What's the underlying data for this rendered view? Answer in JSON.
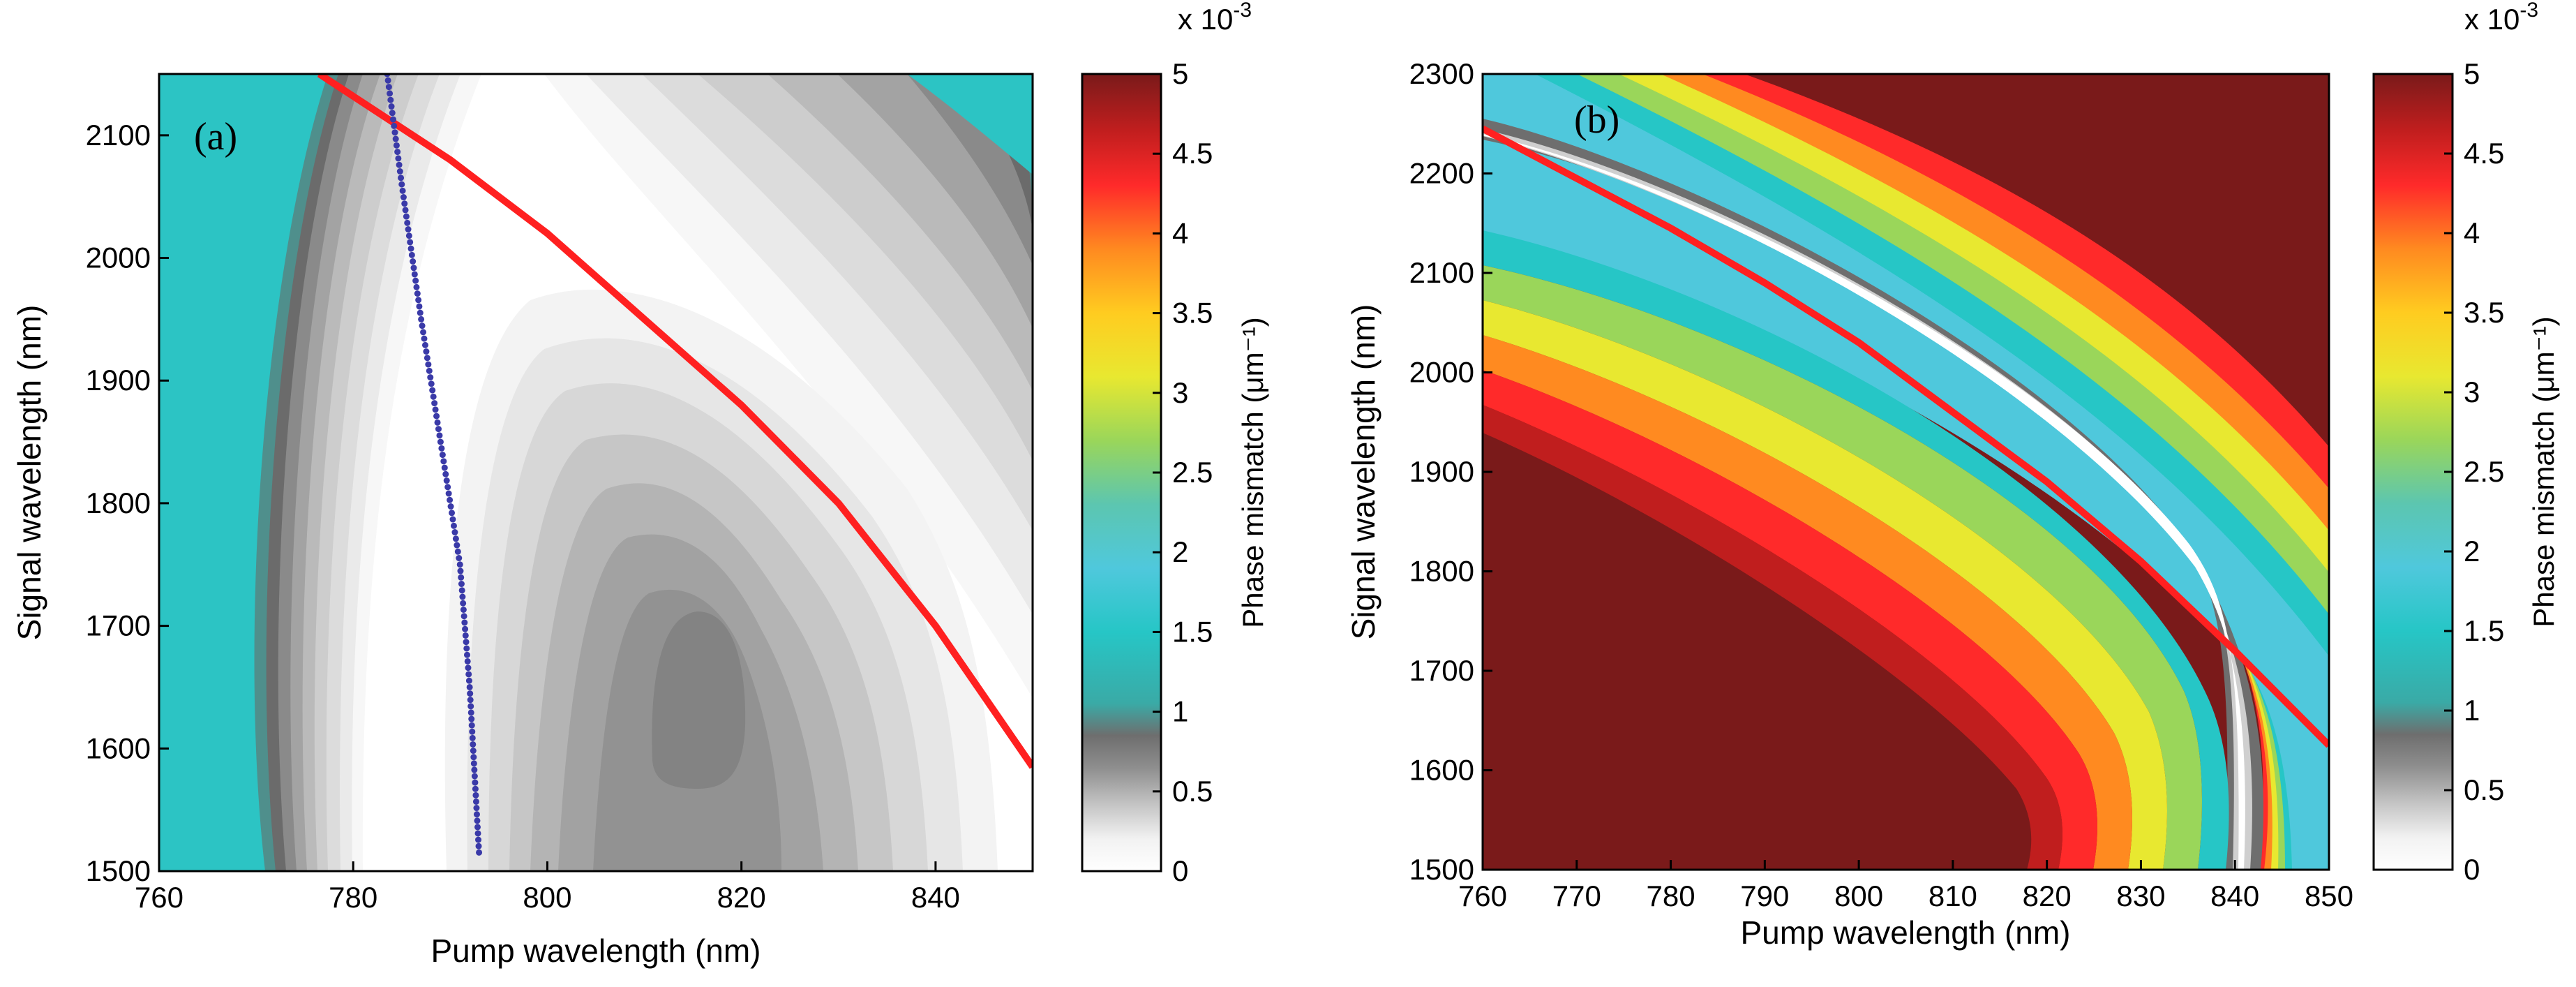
{
  "chart_data": [
    {
      "type": "heatmap",
      "panel_label": "(a)",
      "xlabel": "Pump wavelength (nm)",
      "ylabel": "Signal wavelength (nm)",
      "xlim": [
        760,
        850
      ],
      "ylim": [
        1500,
        2150
      ],
      "xticks": [
        "760",
        "780",
        "800",
        "820",
        "840"
      ],
      "yticks": [
        "1500",
        "1600",
        "1700",
        "1800",
        "1900",
        "2000",
        "2100"
      ],
      "colorbar": {
        "label": "Phase mismatch (μm⁻¹)",
        "exponent_prefix": "x 10",
        "exponent": "-3",
        "ticks": [
          "0",
          "0.5",
          "1",
          "1.5",
          "2",
          "2.5",
          "3",
          "3.5",
          "4",
          "4.5",
          "5"
        ],
        "range": [
          0,
          5
        ]
      },
      "min_region": {
        "x": 818,
        "y": 1640,
        "label": "inner minimum contour"
      },
      "series": [
        {
          "name": "red curve",
          "color": "#ff2020",
          "x": [
            776.5,
            790,
            800,
            810,
            820,
            830,
            840,
            850
          ],
          "y": [
            2150,
            2080,
            2020,
            1950,
            1880,
            1800,
            1700,
            1585
          ]
        },
        {
          "name": "blue dotted curve",
          "color": "#3a3aa8",
          "x": [
            783.5,
            785,
            787,
            789,
            791,
            792,
            793
          ],
          "y": [
            2150,
            2060,
            1950,
            1850,
            1750,
            1650,
            1510
          ]
        }
      ]
    },
    {
      "type": "heatmap",
      "panel_label": "(b)",
      "xlabel": "Pump wavelength (nm)",
      "ylabel": "Signal wavelength (nm)",
      "xlim": [
        760,
        850
      ],
      "ylim": [
        1500,
        2300
      ],
      "xticks": [
        "760",
        "770",
        "780",
        "790",
        "800",
        "810",
        "820",
        "830",
        "840",
        "850"
      ],
      "yticks": [
        "1500",
        "1600",
        "1700",
        "1800",
        "1900",
        "2000",
        "2100",
        "2200",
        "2300"
      ],
      "colorbar": {
        "label": "Phase mismatch (μm⁻¹)",
        "exponent_prefix": "x 10",
        "exponent": "-3",
        "ticks": [
          "0",
          "0.5",
          "1",
          "1.5",
          "2",
          "2.5",
          "3",
          "3.5",
          "4",
          "4.5",
          "5"
        ],
        "range": [
          0,
          5
        ]
      },
      "series": [
        {
          "name": "red curve",
          "color": "#ff2020",
          "x": [
            760,
            770,
            780,
            790,
            800,
            810,
            820,
            830,
            840,
            850
          ],
          "y": [
            2245,
            2195,
            2145,
            2090,
            2030,
            1960,
            1890,
            1810,
            1720,
            1625
          ]
        }
      ]
    }
  ]
}
